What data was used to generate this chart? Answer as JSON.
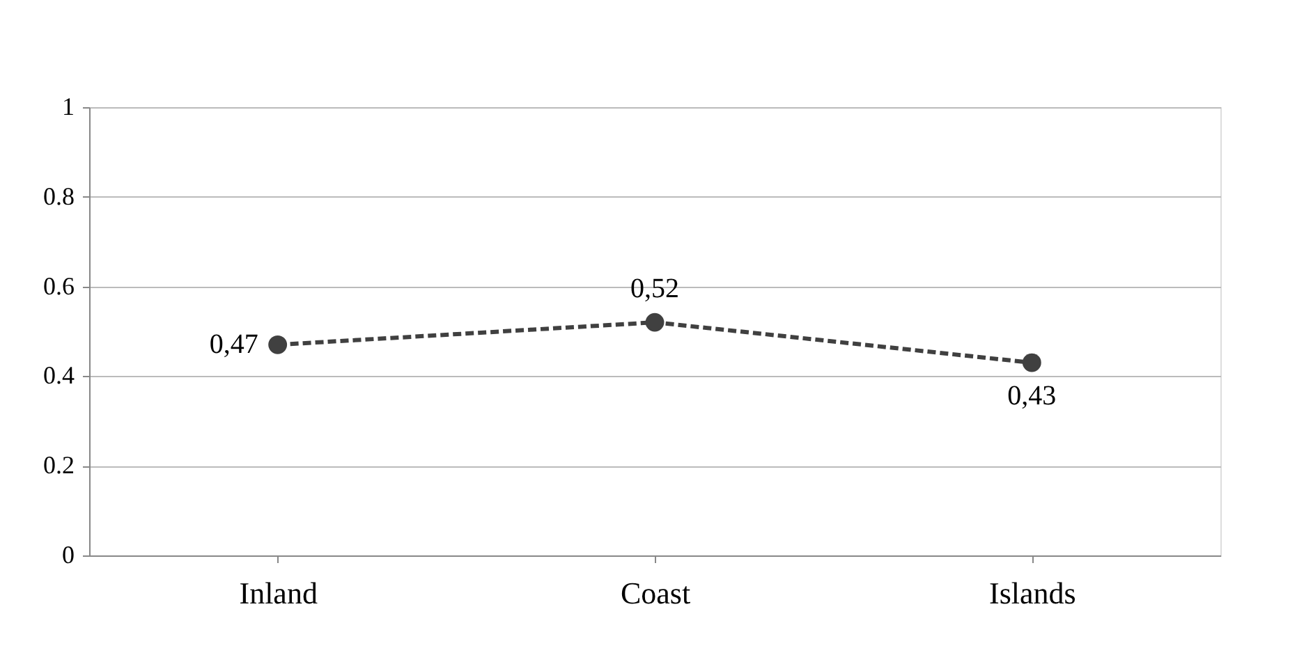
{
  "chart_data": {
    "type": "line",
    "categories": [
      "Inland",
      "Coast",
      "Islands"
    ],
    "series": [
      {
        "color": "#404040",
        "values": [
          0.47,
          0.52,
          0.43
        ],
        "value_labels": [
          "0,47",
          "0,52",
          "0,43"
        ]
      }
    ],
    "ylim": [
      0,
      1
    ],
    "yticks": [
      0,
      0.2,
      0.4,
      0.6,
      0.8,
      1
    ],
    "grid": "y",
    "marker": "circle",
    "line_style": "dashed"
  }
}
